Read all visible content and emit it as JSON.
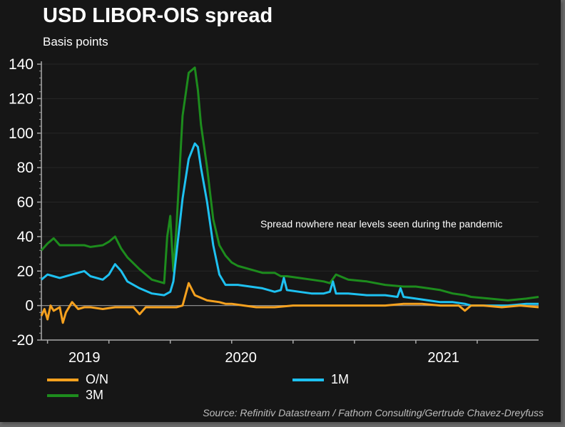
{
  "chart_data": {
    "type": "line",
    "title": "USD LIBOR-OIS spread",
    "subtitle": "Basis points",
    "ylabel": "Basis points",
    "xlabel": "",
    "ylim": [
      -20,
      140
    ],
    "yticks": [
      -20,
      0,
      20,
      40,
      60,
      80,
      100,
      120,
      140
    ],
    "ytick_labels": [
      "-20",
      "0",
      "20",
      "40",
      "60",
      "80",
      "100",
      "120",
      "140"
    ],
    "x_axis_note": "x values in quarter-tick units from axis start",
    "xlim": [
      0,
      8.1
    ],
    "xticks": [
      0.1,
      1.1,
      2.1,
      3.1,
      4.1,
      5.1,
      6.1,
      7.1
    ],
    "year_labels": [
      {
        "label": "2019",
        "x": 0.7
      },
      {
        "label": "2020",
        "x": 3.25
      },
      {
        "label": "2021",
        "x": 6.55
      }
    ],
    "grid": true,
    "annotation": "Spread nowhere near levels seen during the pandemic",
    "legend_position": "bottom",
    "series": [
      {
        "name": "O/N",
        "color": "#F5A11F",
        "x": [
          0,
          0.05,
          0.1,
          0.15,
          0.2,
          0.3,
          0.35,
          0.4,
          0.5,
          0.6,
          0.7,
          0.8,
          1.0,
          1.2,
          1.4,
          1.5,
          1.6,
          1.7,
          1.8,
          2.0,
          2.2,
          2.3,
          2.4,
          2.5,
          2.7,
          2.9,
          3.0,
          3.1,
          3.3,
          3.5,
          3.8,
          4.1,
          4.4,
          4.7,
          5.0,
          5.3,
          5.6,
          5.9,
          6.2,
          6.5,
          6.8,
          6.9,
          7.0,
          7.2,
          7.5,
          7.8,
          8.1
        ],
        "values": [
          -6,
          -2,
          -8,
          0,
          -3,
          -1,
          -10,
          -4,
          2,
          -2,
          -1,
          -1,
          -2,
          -1,
          -1,
          -1,
          -5,
          -1,
          -1,
          -1,
          -1,
          0,
          13,
          6,
          3,
          2,
          1,
          1,
          0,
          -1,
          -1,
          0,
          0,
          0,
          0,
          0,
          0,
          1,
          1,
          0,
          0,
          -3,
          0,
          0,
          -1,
          0,
          -1
        ]
      },
      {
        "name": "1M",
        "color": "#1EC1F1",
        "x": [
          0,
          0.1,
          0.2,
          0.3,
          0.5,
          0.7,
          0.8,
          1.0,
          1.1,
          1.2,
          1.3,
          1.4,
          1.6,
          1.8,
          2.0,
          2.1,
          2.15,
          2.2,
          2.3,
          2.4,
          2.5,
          2.55,
          2.6,
          2.7,
          2.8,
          2.9,
          3.0,
          3.1,
          3.2,
          3.4,
          3.6,
          3.8,
          3.9,
          3.95,
          4.0,
          4.2,
          4.4,
          4.6,
          4.7,
          4.75,
          4.8,
          5.0,
          5.3,
          5.6,
          5.8,
          5.85,
          5.9,
          6.1,
          6.3,
          6.5,
          6.7,
          6.9,
          7.0,
          7.3,
          7.6,
          7.9,
          8.1
        ],
        "values": [
          15,
          18,
          17,
          16,
          18,
          20,
          17,
          15,
          18,
          24,
          20,
          14,
          10,
          7,
          6,
          8,
          14,
          30,
          62,
          85,
          94,
          92,
          80,
          60,
          35,
          18,
          12,
          12,
          12,
          11,
          10,
          8,
          9,
          16,
          9,
          8,
          7,
          7,
          8,
          14,
          7,
          7,
          6,
          6,
          5,
          10,
          5,
          4,
          3,
          2,
          2,
          1,
          0,
          0,
          0,
          1,
          1
        ]
      },
      {
        "name": "3M",
        "color": "#1D8C1D",
        "x": [
          0,
          0.1,
          0.2,
          0.3,
          0.5,
          0.7,
          0.8,
          1.0,
          1.1,
          1.2,
          1.3,
          1.4,
          1.6,
          1.8,
          2.0,
          2.05,
          2.1,
          2.15,
          2.2,
          2.3,
          2.4,
          2.5,
          2.55,
          2.6,
          2.7,
          2.8,
          2.9,
          3.0,
          3.1,
          3.2,
          3.4,
          3.6,
          3.8,
          3.9,
          4.0,
          4.2,
          4.4,
          4.6,
          4.7,
          4.8,
          5.0,
          5.3,
          5.6,
          5.9,
          6.1,
          6.3,
          6.5,
          6.7,
          6.9,
          7.0,
          7.3,
          7.6,
          7.9,
          8.1
        ],
        "values": [
          32,
          36,
          39,
          35,
          35,
          35,
          34,
          35,
          37,
          40,
          33,
          28,
          21,
          15,
          13,
          40,
          52,
          20,
          45,
          110,
          135,
          138,
          125,
          105,
          80,
          50,
          35,
          29,
          25,
          23,
          21,
          19,
          19,
          17,
          17,
          16,
          15,
          14,
          13,
          18,
          15,
          14,
          12,
          11,
          11,
          10,
          9,
          7,
          6,
          5,
          4,
          3,
          4,
          5
        ]
      }
    ]
  },
  "legend": [
    {
      "label": "O/N",
      "color": "#F5A11F"
    },
    {
      "label": "1M",
      "color": "#1EC1F1"
    },
    {
      "label": "3M",
      "color": "#1D8C1D"
    }
  ],
  "source": "Source: Refinitiv Datastream / Fathom Consulting/Gertrude Chavez-Dreyfuss"
}
